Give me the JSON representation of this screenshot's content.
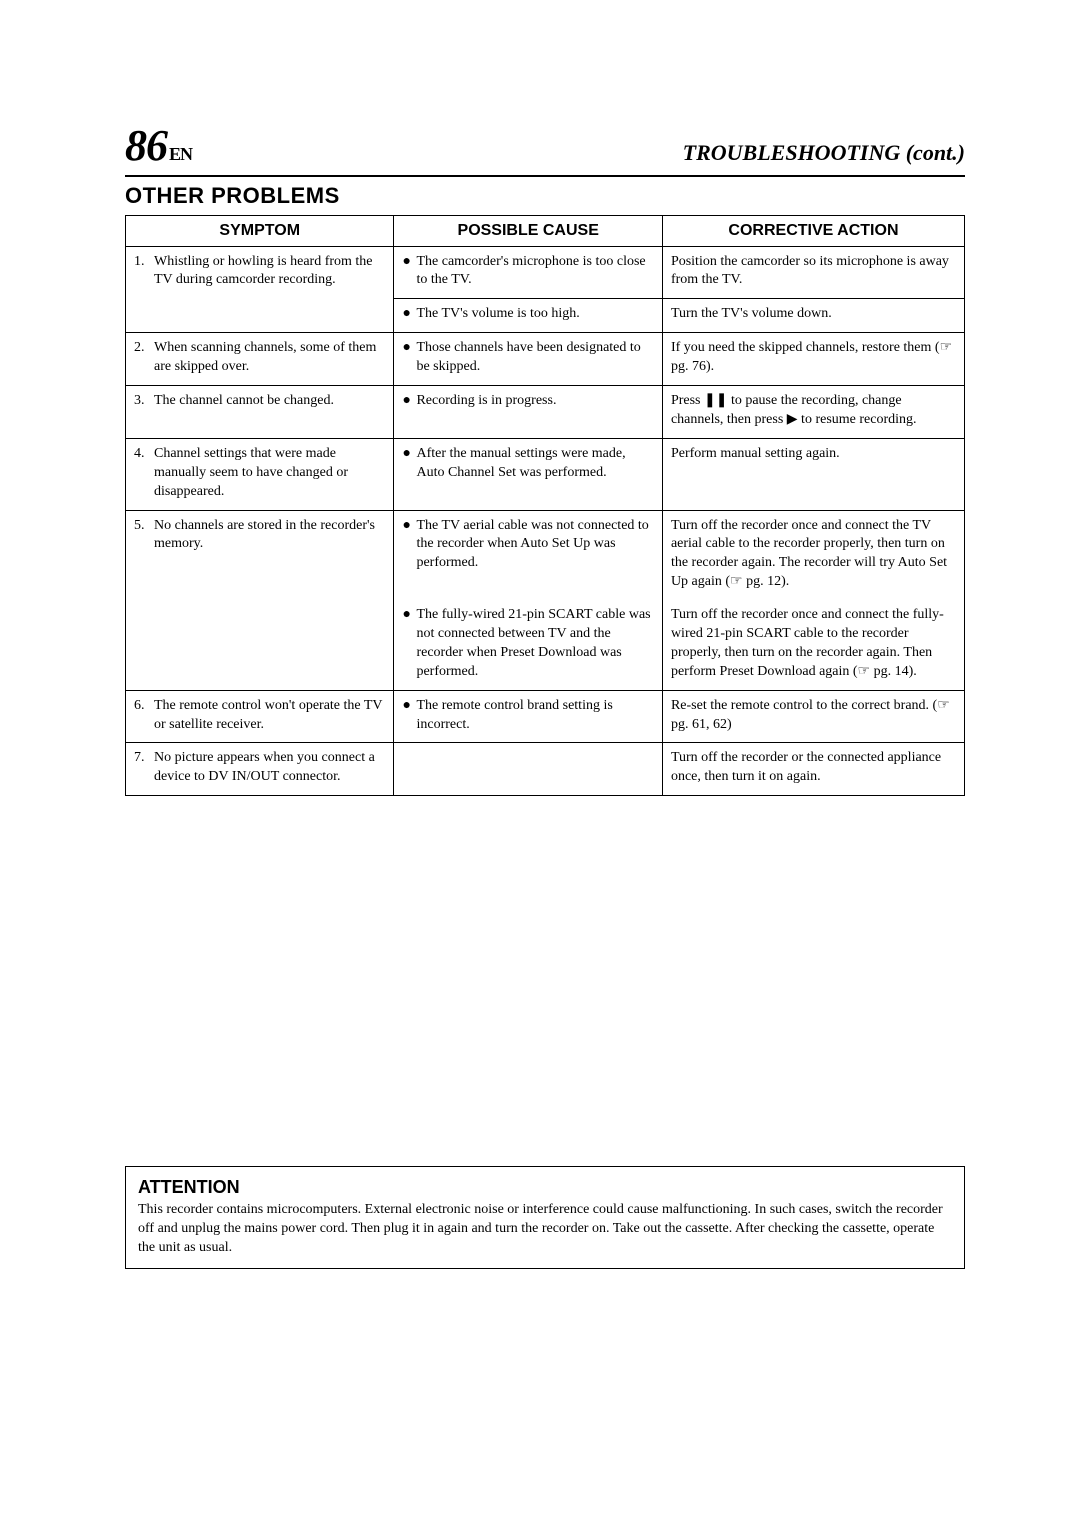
{
  "page_number": "86",
  "page_lang": "EN",
  "header_title": "TROUBLESHOOTING (cont.)",
  "section_title": "OTHER PROBLEMS",
  "table": {
    "headers": [
      "SYMPTOM",
      "POSSIBLE CAUSE",
      "CORRECTIVE ACTION"
    ],
    "r1": {
      "num": "1.",
      "symptom": "Whistling or howling is heard from the TV during camcorder recording.",
      "cause_a": "The camcorder's microphone is too close to the TV.",
      "action_a": "Position the camcorder so its microphone is away from the TV.",
      "cause_b": "The TV's volume is too high.",
      "action_b": "Turn the TV's volume down."
    },
    "r2": {
      "num": "2.",
      "symptom": "When scanning channels, some of them are skipped over.",
      "cause": "Those channels have been designated to be skipped.",
      "action": "If you need the skipped channels, restore them (☞ pg. 76)."
    },
    "r3": {
      "num": "3.",
      "symptom": "The channel cannot be changed.",
      "cause": "Recording is in progress.",
      "action": "Press ❚❚ to pause the recording, change channels, then press ▶ to resume recording."
    },
    "r4": {
      "num": "4.",
      "symptom": "Channel settings that were made manually seem to have changed or disappeared.",
      "cause": "After the manual settings were made, Auto Channel Set was performed.",
      "action": "Perform manual setting again."
    },
    "r5": {
      "num": "5.",
      "symptom": "No channels are stored in the recorder's memory.",
      "cause_a": "The TV aerial cable was not connected to the recorder when Auto Set Up was performed.",
      "action_a": "Turn off the recorder once and connect the TV aerial cable to the recorder properly, then turn on the recorder again. The recorder will try Auto Set Up again (☞ pg. 12).",
      "cause_b": "The fully-wired 21-pin SCART cable was not connected between TV and the recorder when Preset Download was performed.",
      "action_b": "Turn off the recorder once and connect the fully-wired 21-pin SCART cable to the recorder properly, then turn on the recorder again. Then perform Preset Download again (☞ pg. 14)."
    },
    "r6": {
      "num": "6.",
      "symptom": "The remote control won't operate the TV or satellite receiver.",
      "cause": "The remote control brand setting is incorrect.",
      "action": "Re-set the remote control to the correct brand. (☞ pg. 61, 62)"
    },
    "r7": {
      "num": "7.",
      "symptom": "No picture appears when you connect a device to DV IN/OUT connector.",
      "action": "Turn off the recorder or the connected appliance once, then turn it on again."
    }
  },
  "attention": {
    "title": "ATTENTION",
    "body": "This recorder contains microcomputers. External electronic noise or interference could cause malfunctioning. In such cases, switch the recorder off and unplug the mains power cord. Then plug it in again and turn the recorder on. Take out the cassette. After checking the cassette, operate the unit as usual."
  }
}
